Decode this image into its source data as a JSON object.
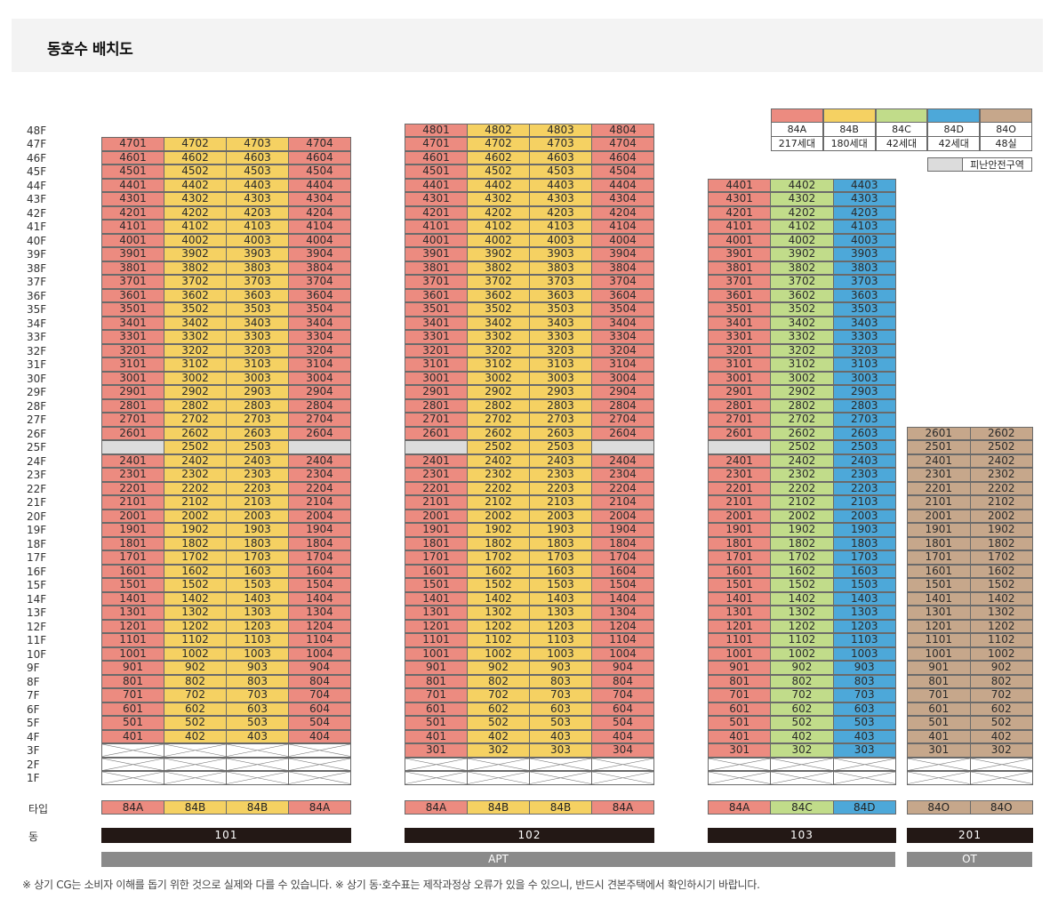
{
  "title": "동호수 배치도",
  "floor_labels": [
    "48F",
    "47F",
    "46F",
    "45F",
    "44F",
    "43F",
    "42F",
    "41F",
    "40F",
    "39F",
    "38F",
    "37F",
    "36F",
    "35F",
    "34F",
    "33F",
    "32F",
    "31F",
    "30F",
    "29F",
    "28F",
    "27F",
    "26F",
    "25F",
    "24F",
    "23F",
    "22F",
    "21F",
    "20F",
    "19F",
    "18F",
    "17F",
    "16F",
    "15F",
    "14F",
    "13F",
    "12F",
    "11F",
    "10F",
    "9F",
    "8F",
    "7F",
    "6F",
    "5F",
    "4F",
    "3F",
    "2F",
    "1F"
  ],
  "row_labels": {
    "type": "타입",
    "dong": "동"
  },
  "colors": {
    "84A": "#ec8b80",
    "84B": "#f5d162",
    "84C": "#c1dc8a",
    "84D": "#4da8d9",
    "84O": "#c6a78b",
    "refuge": "#dcdcdc",
    "pilotis": "#ffffff",
    "dong_bar": "#231815",
    "use_bar": "#8a8a8a"
  },
  "buildings": [
    {
      "dong": "101",
      "top_floor": 47,
      "first_unit_floor": 4,
      "lines": [
        {
          "type": "84A",
          "line": "01"
        },
        {
          "type": "84B",
          "line": "02"
        },
        {
          "type": "84B",
          "line": "03"
        },
        {
          "type": "84A",
          "line": "04"
        }
      ],
      "refuge_floor": 25,
      "refuge_lines": [
        "01",
        "04"
      ],
      "type_labels": [
        "84A",
        "84B",
        "84B",
        "84A"
      ]
    },
    {
      "dong": "102",
      "top_floor": 48,
      "first_unit_floor": 3,
      "lines": [
        {
          "type": "84A",
          "line": "01"
        },
        {
          "type": "84B",
          "line": "02"
        },
        {
          "type": "84B",
          "line": "03"
        },
        {
          "type": "84A",
          "line": "04"
        }
      ],
      "refuge_floor": 25,
      "refuge_lines": [
        "01",
        "04"
      ],
      "type_labels": [
        "84A",
        "84B",
        "84B",
        "84A"
      ]
    },
    {
      "dong": "103",
      "top_floor": 44,
      "first_unit_floor": 3,
      "lines": [
        {
          "type": "84A",
          "line": "01"
        },
        {
          "type": "84C",
          "line": "02"
        },
        {
          "type": "84D",
          "line": "03"
        }
      ],
      "refuge_floor": 25,
      "refuge_lines": [
        "01"
      ],
      "type_labels": [
        "84A",
        "84C",
        "84D"
      ]
    },
    {
      "dong": "201",
      "top_floor": 26,
      "first_unit_floor": 3,
      "lines": [
        {
          "type": "84O",
          "line": "01"
        },
        {
          "type": "84O",
          "line": "02"
        }
      ],
      "refuge_floor": null,
      "refuge_lines": [],
      "type_labels": [
        "84O",
        "84O"
      ]
    }
  ],
  "uses": [
    {
      "label": "APT",
      "dongs": [
        "101",
        "102",
        "103"
      ]
    },
    {
      "label": "OT",
      "dongs": [
        "201"
      ]
    }
  ],
  "legend": {
    "types": [
      {
        "type": "84A",
        "count": "217세대",
        "color": "#ec8b80"
      },
      {
        "type": "84B",
        "count": "180세대",
        "color": "#f5d162"
      },
      {
        "type": "84C",
        "count": "42세대",
        "color": "#c1dc8a"
      },
      {
        "type": "84D",
        "count": "42세대",
        "color": "#4da8d9"
      },
      {
        "type": "84O",
        "count": "48실",
        "color": "#c6a78b"
      }
    ],
    "refuge_label": "피난안전구역"
  },
  "footnote": "※ 상기 CG는 소비자 이해를 돕기 위한 것으로 실제와 다를 수 있습니다.  ※ 상기 동·호수표는 제작과정상 오류가 있을 수 있으니, 반드시 견본주택에서 확인하시기 바랍니다."
}
